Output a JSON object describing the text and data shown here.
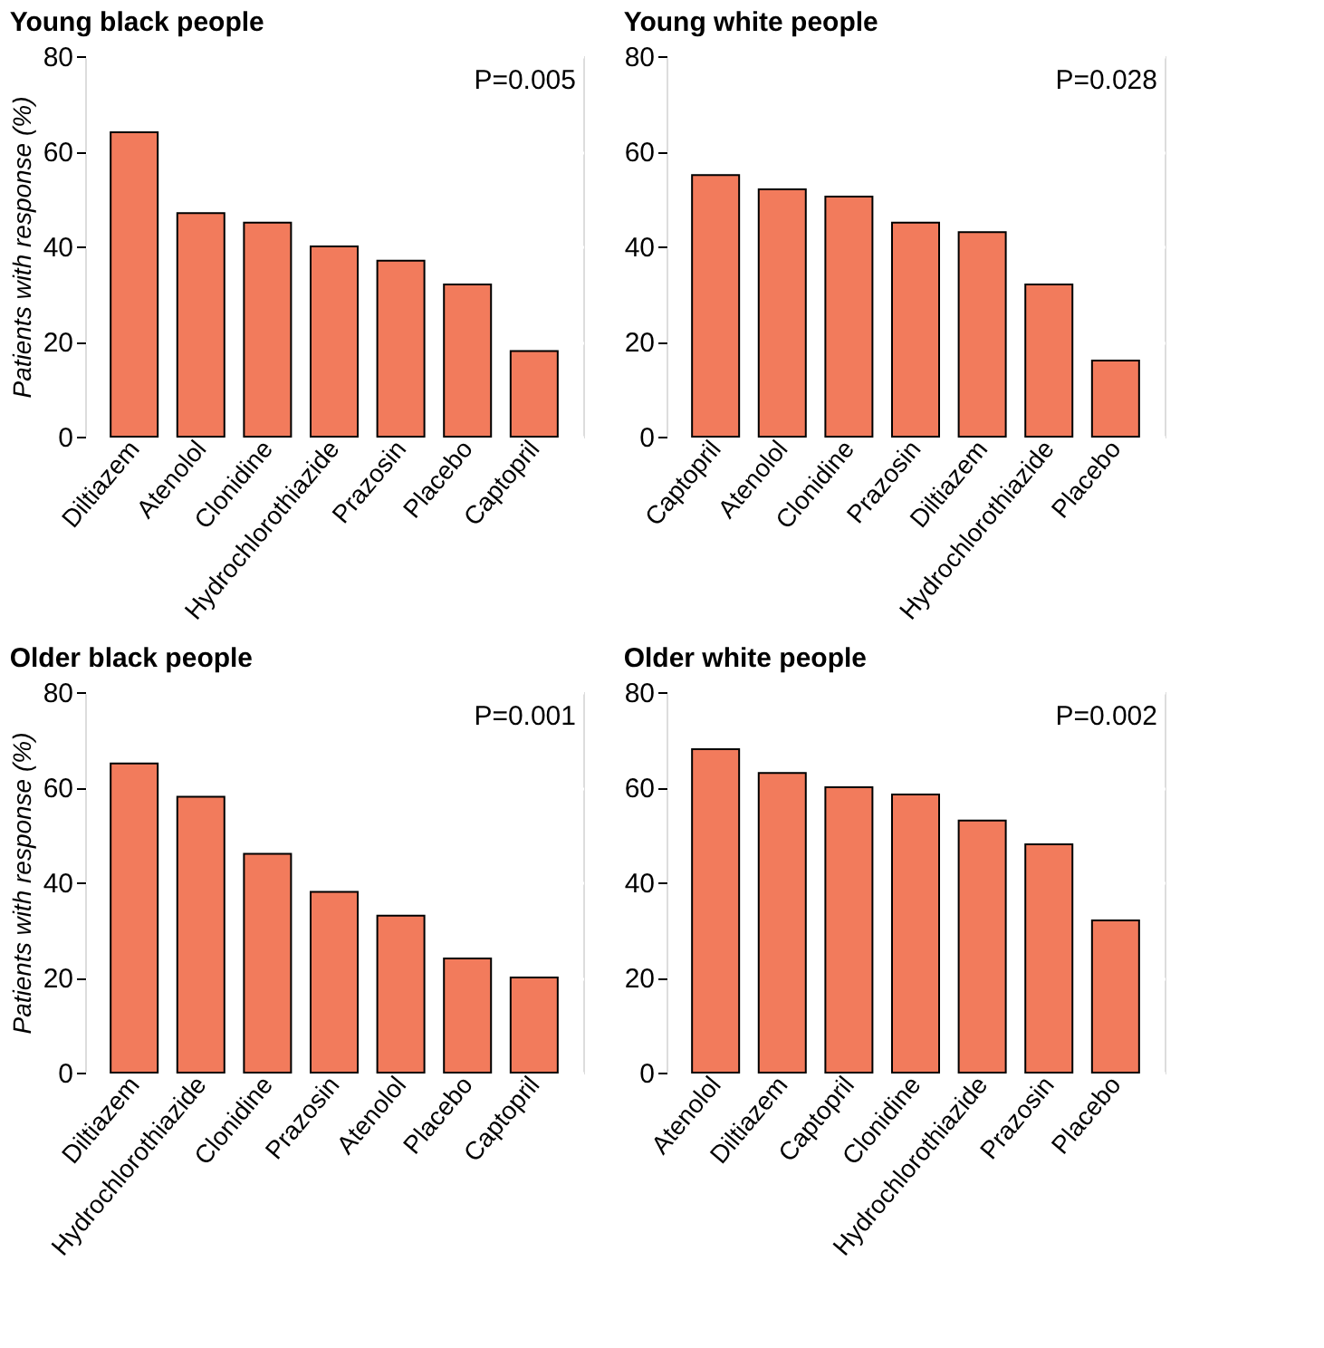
{
  "chart_data": [
    {
      "type": "bar",
      "title": "Young black people",
      "ylabel": "Patients with response (%)",
      "categories": [
        "Diltiazem",
        "Atenolol",
        "Clonidine",
        "Hydrochlorothiazide",
        "Prazosin",
        "Placebo",
        "Captopril"
      ],
      "values": [
        64,
        47,
        45,
        40,
        37,
        32,
        18
      ],
      "color": "#f27b5c",
      "ylim": [
        0,
        80
      ],
      "yticks": [
        0,
        20,
        40,
        60,
        80
      ],
      "grid": "y",
      "annotations": [
        "P=0.005"
      ]
    },
    {
      "type": "bar",
      "title": "Young white people",
      "categories": [
        "Captopril",
        "Atenolol",
        "Clonidine",
        "Prazosin",
        "Diltiazem",
        "Hydrochlorothiazide",
        "Placebo"
      ],
      "values": [
        55,
        52,
        50.5,
        45,
        43,
        32,
        16
      ],
      "color": "#f27b5c",
      "ylim": [
        0,
        80
      ],
      "yticks": [
        0,
        20,
        40,
        60,
        80
      ],
      "grid": "y",
      "annotations": [
        "P=0.028"
      ]
    },
    {
      "type": "bar",
      "title": "Older black people",
      "ylabel": "Patients with response (%)",
      "categories": [
        "Diltiazem",
        "Hydrochlorothiazide",
        "Clonidine",
        "Prazosin",
        "Atenolol",
        "Placebo",
        "Captopril"
      ],
      "values": [
        65,
        58,
        46,
        38,
        33,
        24,
        20
      ],
      "color": "#f27b5c",
      "ylim": [
        0,
        80
      ],
      "yticks": [
        0,
        20,
        40,
        60,
        80
      ],
      "grid": "y",
      "annotations": [
        "P=0.001"
      ]
    },
    {
      "type": "bar",
      "title": "Older white people",
      "categories": [
        "Atenolol",
        "Diltiazem",
        "Captopril",
        "Clonidine",
        "Hydrochlorothiazide",
        "Prazosin",
        "Placebo"
      ],
      "values": [
        68,
        63,
        60,
        58.5,
        53,
        48,
        32
      ],
      "color": "#f27b5c",
      "ylim": [
        0,
        80
      ],
      "yticks": [
        0,
        20,
        40,
        60,
        80
      ],
      "grid": "y",
      "annotations": [
        "P=0.002"
      ]
    }
  ]
}
